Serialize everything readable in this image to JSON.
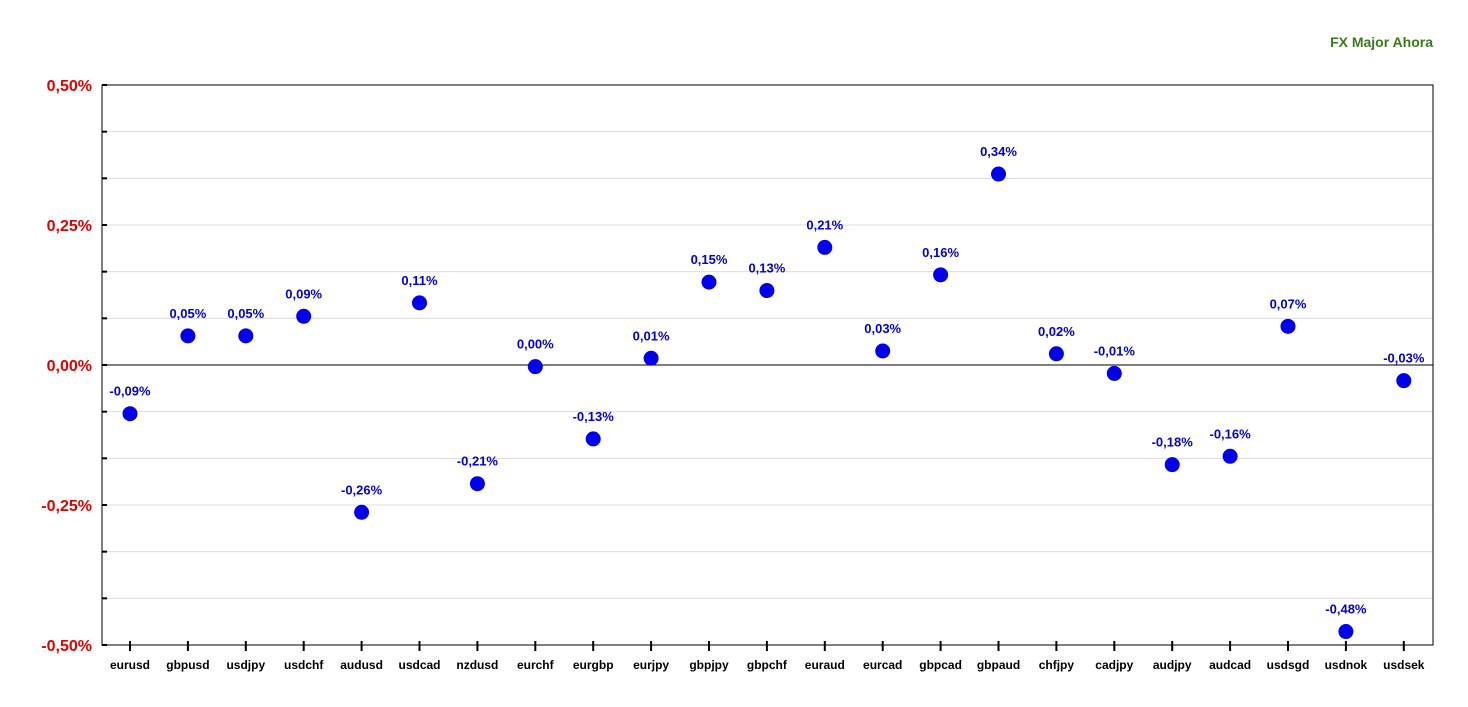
{
  "chart_data": {
    "type": "scatter",
    "title": "FX Major Ahora",
    "xlabel": "",
    "ylabel": "",
    "ylim": [
      -0.5,
      0.5
    ],
    "y_ticks": [
      0.5,
      0.25,
      0.0,
      -0.25,
      -0.5
    ],
    "y_tick_labels": [
      "0,50%",
      "0,25%",
      "0,00%",
      "-0,25%",
      "-0,50%"
    ],
    "grid": true,
    "colors": {
      "marker": "#0000ee",
      "title": "#3a7a1a",
      "y_ticks": "#e00000"
    },
    "categories": [
      "eurusd",
      "gbpusd",
      "usdjpy",
      "usdchf",
      "audusd",
      "usdcad",
      "nzdusd",
      "eurchf",
      "eurgbp",
      "eurjpy",
      "gbpjpy",
      "gbpchf",
      "euraud",
      "eurcad",
      "gbpcad",
      "gbpaud",
      "chfjpy",
      "cadjpy",
      "audjpy",
      "audcad",
      "usdsgd",
      "usdnok",
      "usdsek"
    ],
    "values": [
      -0.087,
      0.052,
      0.052,
      0.087,
      -0.263,
      0.111,
      -0.212,
      -0.003,
      -0.132,
      0.012,
      0.148,
      0.133,
      0.21,
      0.025,
      0.161,
      0.341,
      0.02,
      -0.015,
      -0.178,
      -0.163,
      0.069,
      -0.476,
      -0.028
    ],
    "data_labels": [
      "-0,09%",
      "0,05%",
      "0,05%",
      "0,09%",
      "-0,26%",
      "0,11%",
      "-0,21%",
      "0,00%",
      "-0,13%",
      "0,01%",
      "0,15%",
      "0,13%",
      "0,21%",
      "0,03%",
      "0,16%",
      "0,34%",
      "0,02%",
      "-0,01%",
      "-0,18%",
      "-0,16%",
      "0,07%",
      "-0,48%",
      "-0,03%"
    ]
  }
}
